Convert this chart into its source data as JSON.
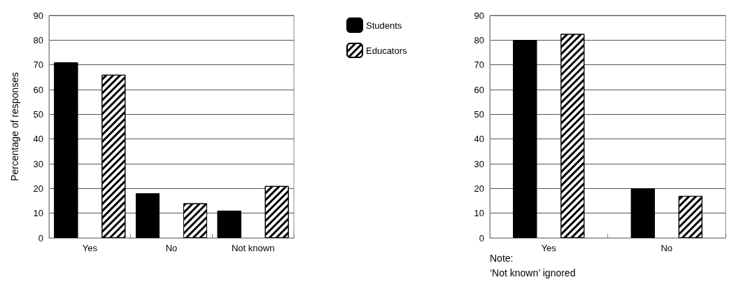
{
  "chart_data": [
    {
      "type": "bar",
      "ylabel": "Percentage of responses",
      "categories": [
        "Yes",
        "No",
        "Not known"
      ],
      "series": [
        {
          "name": "Students",
          "color": "#000000",
          "values": [
            71,
            18,
            11
          ]
        },
        {
          "name": "Educators",
          "color": "#ffffff",
          "values": [
            66,
            14,
            21
          ]
        }
      ],
      "ylim": [
        0,
        90
      ],
      "yticks": [
        0,
        10,
        20,
        30,
        40,
        50,
        60,
        70,
        80,
        90
      ],
      "grid": "y",
      "legend": "top right"
    },
    {
      "type": "bar",
      "categories": [
        "Yes",
        "No"
      ],
      "series": [
        {
          "color": "#000000",
          "values": [
            80,
            20
          ]
        },
        {
          "color": "#ffffff",
          "values": [
            82.5,
            17
          ]
        }
      ],
      "ylim": [
        0,
        90
      ],
      "yticks": [
        0,
        10,
        20,
        30,
        40,
        50,
        60,
        70,
        80,
        90
      ],
      "grid": "y",
      "annotations": [
        "Note:",
        "‘Not known’ ignored"
      ]
    }
  ]
}
